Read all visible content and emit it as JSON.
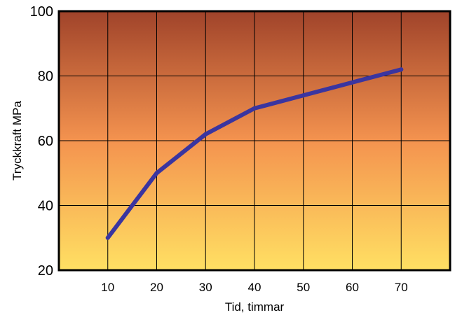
{
  "chart_data": {
    "type": "line",
    "xlabel": "Tid, timmar",
    "ylabel": "Tryckkraft MPa",
    "xlim": [
      0,
      80
    ],
    "ylim": [
      20,
      100
    ],
    "x_ticks": [
      10,
      20,
      30,
      40,
      50,
      60,
      70
    ],
    "y_ticks": [
      20,
      40,
      60,
      80,
      100
    ],
    "grid": true,
    "series": [
      {
        "x": [
          10,
          20,
          30,
          40,
          50,
          60,
          70
        ],
        "y": [
          30,
          50,
          62,
          70,
          74,
          78,
          82
        ]
      }
    ],
    "colors": {
      "line": "#3a35a0",
      "grid": "#000000",
      "bg_top": "#a0432a",
      "bg_mid": "#f4934f",
      "bg_bottom": "#ffe063"
    }
  }
}
